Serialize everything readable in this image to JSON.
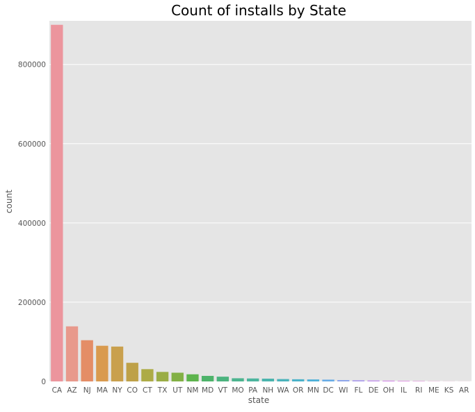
{
  "chart_data": {
    "type": "bar",
    "title": "Count of installs by State",
    "xlabel": "state",
    "ylabel": "count",
    "ylim": [
      0,
      910000
    ],
    "yticks": [
      0,
      200000,
      400000,
      600000,
      800000
    ],
    "ytick_labels": [
      "0",
      "200000",
      "400000",
      "600000",
      "800000"
    ],
    "grid": true,
    "background": "#e5e5e5",
    "categories": [
      "CA",
      "AZ",
      "NJ",
      "MA",
      "NY",
      "CO",
      "CT",
      "TX",
      "UT",
      "NM",
      "MD",
      "VT",
      "MO",
      "PA",
      "NH",
      "WA",
      "OR",
      "MN",
      "DC",
      "WI",
      "FL",
      "DE",
      "OH",
      "IL",
      "RI",
      "ME",
      "KS",
      "AR"
    ],
    "values": [
      900000,
      139000,
      104000,
      90000,
      88000,
      47000,
      31000,
      24000,
      22000,
      18000,
      14000,
      12000,
      8000,
      7500,
      7000,
      6000,
      5500,
      5000,
      4500,
      3500,
      3000,
      2500,
      2000,
      1500,
      1000,
      500,
      300,
      200
    ],
    "colors": [
      "#ec959d",
      "#e8998c",
      "#e48d66",
      "#d99a4e",
      "#c9a04d",
      "#bea148",
      "#adab46",
      "#9aad45",
      "#82b044",
      "#5db44d",
      "#4db36a",
      "#4bb37e",
      "#4cb48f",
      "#4cb59e",
      "#4ab4ad",
      "#4bb3bb",
      "#4bb2c9",
      "#4db0d8",
      "#66abe6",
      "#8ea5ea",
      "#ab9ceb",
      "#c293ec",
      "#d28ae7",
      "#dc8be1",
      "#e38ad8",
      "#e88ccc",
      "#ea90bf",
      "#ec95ae"
    ]
  }
}
